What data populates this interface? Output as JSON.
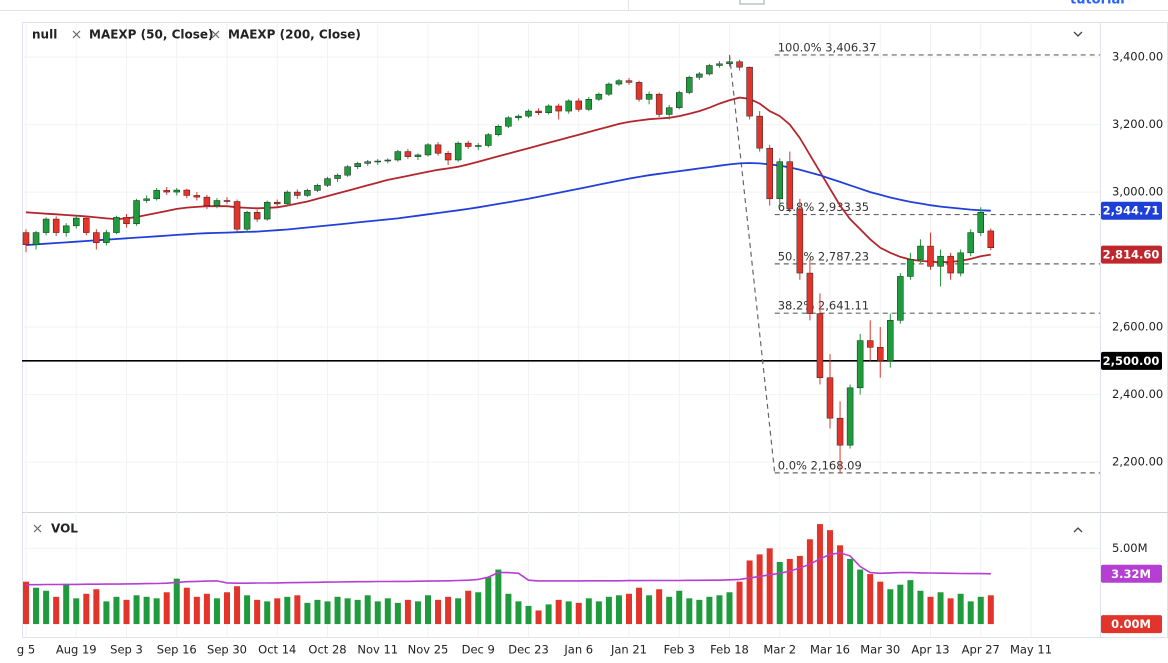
{
  "toolbar_text": "tutorial",
  "chart_data": {
    "type": "candlestick",
    "title": "null",
    "categories": [
      "g 5",
      null,
      null,
      null,
      null,
      "Aug 19",
      null,
      null,
      null,
      null,
      "Sep 3",
      null,
      null,
      null,
      null,
      "Sep 16",
      null,
      null,
      null,
      null,
      "Sep 30",
      null,
      null,
      null,
      null,
      "Oct 14",
      null,
      null,
      null,
      null,
      "Oct 28",
      null,
      null,
      null,
      null,
      "Nov 11",
      null,
      null,
      null,
      null,
      "Nov 25",
      null,
      null,
      null,
      null,
      "Dec 9",
      null,
      null,
      null,
      null,
      "Dec 23",
      null,
      null,
      null,
      null,
      "Jan 6",
      null,
      null,
      null,
      null,
      "Jan 21",
      null,
      null,
      null,
      null,
      "Feb 3",
      null,
      null,
      null,
      null,
      "Feb 18",
      null,
      null,
      null,
      null,
      "Mar 2",
      null,
      null,
      null,
      null,
      "Mar 16",
      null,
      null,
      null,
      null,
      "Mar 30",
      null,
      null,
      null,
      null,
      "Apr 13",
      null,
      null,
      null,
      null,
      "Apr 27",
      null,
      null,
      null,
      null,
      "May 11",
      null,
      null
    ],
    "ohlc": [
      [
        2880,
        2890,
        2822,
        2844
      ],
      [
        2844,
        2885,
        2830,
        2880
      ],
      [
        2880,
        2925,
        2872,
        2920
      ],
      [
        2920,
        2928,
        2870,
        2880
      ],
      [
        2880,
        2908,
        2868,
        2900
      ],
      [
        2900,
        2930,
        2892,
        2923
      ],
      [
        2923,
        2930,
        2872,
        2880
      ],
      [
        2880,
        2890,
        2830,
        2850
      ],
      [
        2850,
        2888,
        2842,
        2880
      ],
      [
        2880,
        2930,
        2875,
        2925
      ],
      [
        2925,
        2935,
        2895,
        2906
      ],
      [
        2906,
        2980,
        2900,
        2975
      ],
      [
        2975,
        2990,
        2968,
        2980
      ],
      [
        2980,
        3012,
        2975,
        3005
      ],
      [
        3005,
        3015,
        2992,
        3000
      ],
      [
        3000,
        3012,
        2990,
        3006
      ],
      [
        3006,
        3010,
        2982,
        2990
      ],
      [
        2990,
        3000,
        2975,
        2985
      ],
      [
        2985,
        2992,
        2950,
        2960
      ],
      [
        2960,
        2982,
        2952,
        2975
      ],
      [
        2975,
        2985,
        2965,
        2972
      ],
      [
        2972,
        2978,
        2882,
        2890
      ],
      [
        2890,
        2945,
        2880,
        2940
      ],
      [
        2940,
        2948,
        2912,
        2920
      ],
      [
        2920,
        2975,
        2915,
        2970
      ],
      [
        2970,
        2978,
        2955,
        2965
      ],
      [
        2965,
        3005,
        2960,
        3000
      ],
      [
        3000,
        3008,
        2980,
        2990
      ],
      [
        2990,
        3010,
        2985,
        3005
      ],
      [
        3005,
        3025,
        3000,
        3020
      ],
      [
        3020,
        3045,
        3015,
        3040
      ],
      [
        3040,
        3055,
        3030,
        3050
      ],
      [
        3050,
        3080,
        3045,
        3075
      ],
      [
        3075,
        3090,
        3068,
        3085
      ],
      [
        3085,
        3095,
        3078,
        3090
      ],
      [
        3090,
        3098,
        3080,
        3092
      ],
      [
        3092,
        3100,
        3085,
        3095
      ],
      [
        3095,
        3125,
        3090,
        3120
      ],
      [
        3120,
        3128,
        3098,
        3105
      ],
      [
        3105,
        3115,
        3095,
        3110
      ],
      [
        3110,
        3145,
        3105,
        3140
      ],
      [
        3140,
        3148,
        3108,
        3115
      ],
      [
        3115,
        3122,
        3080,
        3095
      ],
      [
        3095,
        3150,
        3090,
        3145
      ],
      [
        3145,
        3152,
        3128,
        3135
      ],
      [
        3135,
        3145,
        3125,
        3138
      ],
      [
        3138,
        3175,
        3132,
        3170
      ],
      [
        3170,
        3200,
        3165,
        3195
      ],
      [
        3195,
        3225,
        3190,
        3220
      ],
      [
        3220,
        3230,
        3212,
        3225
      ],
      [
        3225,
        3245,
        3220,
        3240
      ],
      [
        3240,
        3248,
        3228,
        3235
      ],
      [
        3235,
        3260,
        3230,
        3255
      ],
      [
        3255,
        3262,
        3215,
        3240
      ],
      [
        3240,
        3275,
        3232,
        3270
      ],
      [
        3270,
        3278,
        3238,
        3245
      ],
      [
        3245,
        3282,
        3240,
        3275
      ],
      [
        3275,
        3295,
        3270,
        3290
      ],
      [
        3290,
        3325,
        3285,
        3320
      ],
      [
        3320,
        3335,
        3315,
        3330
      ],
      [
        3330,
        3338,
        3318,
        3325
      ],
      [
        3325,
        3330,
        3268,
        3275
      ],
      [
        3275,
        3298,
        3260,
        3290
      ],
      [
        3290,
        3295,
        3222,
        3230
      ],
      [
        3230,
        3258,
        3215,
        3250
      ],
      [
        3250,
        3300,
        3245,
        3295
      ],
      [
        3295,
        3345,
        3290,
        3340
      ],
      [
        3340,
        3356,
        3332,
        3350
      ],
      [
        3350,
        3380,
        3345,
        3375
      ],
      [
        3375,
        3388,
        3368,
        3380
      ],
      [
        3380,
        3406,
        3372,
        3386
      ],
      [
        3386,
        3392,
        3360,
        3370
      ],
      [
        3370,
        3372,
        3215,
        3225
      ],
      [
        3225,
        3240,
        3120,
        3130
      ],
      [
        3130,
        3140,
        2960,
        2980
      ],
      [
        2980,
        3100,
        2955,
        3090
      ],
      [
        3090,
        3120,
        2940,
        2950
      ],
      [
        2950,
        2980,
        2740,
        2760
      ],
      [
        2760,
        2800,
        2620,
        2640
      ],
      [
        2640,
        2700,
        2430,
        2450
      ],
      [
        2450,
        2520,
        2300,
        2330
      ],
      [
        2330,
        2380,
        2168,
        2250
      ],
      [
        2250,
        2430,
        2240,
        2420
      ],
      [
        2420,
        2580,
        2400,
        2560
      ],
      [
        2560,
        2620,
        2500,
        2540
      ],
      [
        2540,
        2600,
        2450,
        2500
      ],
      [
        2500,
        2640,
        2480,
        2620
      ],
      [
        2620,
        2760,
        2610,
        2750
      ],
      [
        2750,
        2820,
        2740,
        2800
      ],
      [
        2800,
        2860,
        2790,
        2840
      ],
      [
        2840,
        2880,
        2770,
        2780
      ],
      [
        2780,
        2830,
        2720,
        2810
      ],
      [
        2810,
        2820,
        2740,
        2760
      ],
      [
        2760,
        2830,
        2750,
        2820
      ],
      [
        2820,
        2890,
        2810,
        2880
      ],
      [
        2880,
        2955,
        2870,
        2940
      ],
      [
        2885,
        2892,
        2828,
        2835
      ],
      null,
      null,
      null,
      null,
      null,
      null
    ],
    "up_color": "#1f9a3c",
    "down_color": "#e2342b",
    "series": [
      {
        "name": "MAEXP (50, Close)",
        "color": "#b3262c",
        "values": [
          2940,
          2938,
          2936,
          2934,
          2932,
          2930,
          2928,
          2925,
          2922,
          2920,
          2922,
          2926,
          2932,
          2938,
          2944,
          2950,
          2954,
          2956,
          2958,
          2958,
          2958,
          2955,
          2953,
          2952,
          2953,
          2955,
          2960,
          2966,
          2972,
          2980,
          2988,
          2996,
          3004,
          3012,
          3020,
          3028,
          3036,
          3042,
          3048,
          3054,
          3060,
          3066,
          3070,
          3075,
          3082,
          3090,
          3098,
          3106,
          3114,
          3122,
          3130,
          3138,
          3146,
          3154,
          3162,
          3170,
          3178,
          3186,
          3194,
          3202,
          3208,
          3212,
          3216,
          3218,
          3220,
          3225,
          3232,
          3240,
          3250,
          3262,
          3272,
          3280,
          3276,
          3262,
          3240,
          3225,
          3200,
          3160,
          3110,
          3060,
          3010,
          2960,
          2920,
          2890,
          2860,
          2835,
          2820,
          2808,
          2800,
          2796,
          2794,
          2792,
          2793,
          2796,
          2802,
          2810,
          2814.6,
          null,
          null,
          null,
          null,
          null,
          null
        ]
      },
      {
        "name": "MAEXP (200, Close)",
        "color": "#2140d8",
        "values": [
          2843,
          2845,
          2847,
          2849,
          2851,
          2853,
          2855,
          2857,
          2859,
          2861,
          2863,
          2865,
          2867,
          2869,
          2871,
          2873,
          2875,
          2877,
          2878,
          2879,
          2880,
          2881,
          2882,
          2883,
          2885,
          2887,
          2889,
          2892,
          2895,
          2898,
          2901,
          2904,
          2907,
          2910,
          2913,
          2916,
          2919,
          2922,
          2926,
          2930,
          2934,
          2938,
          2942,
          2946,
          2950,
          2955,
          2960,
          2965,
          2970,
          2975,
          2980,
          2986,
          2992,
          2998,
          3004,
          3010,
          3016,
          3022,
          3028,
          3034,
          3040,
          3045,
          3050,
          3054,
          3058,
          3062,
          3066,
          3070,
          3074,
          3078,
          3082,
          3085,
          3086,
          3085,
          3082,
          3078,
          3073,
          3066,
          3058,
          3050,
          3040,
          3030,
          3020,
          3010,
          3000,
          2992,
          2984,
          2977,
          2971,
          2966,
          2961,
          2957,
          2954,
          2951,
          2948,
          2946,
          2944.71,
          null,
          null,
          null,
          null,
          null,
          null
        ]
      }
    ],
    "last_labels": [
      {
        "value": 2944.71,
        "label": "2,944.71",
        "color": "#1e40d6"
      },
      {
        "value": 2814.6,
        "label": "2,814.60",
        "color": "#c0272d"
      }
    ],
    "hline": {
      "value": 2500,
      "label": "2,500.00",
      "color": "#000000"
    },
    "fib": [
      {
        "value": 3406.37,
        "label": "100.0% 3,406.37"
      },
      {
        "value": 2933.35,
        "label": "61.8% 2,933.35"
      },
      {
        "value": 2787.23,
        "label": "50.0% 2,787.23"
      },
      {
        "value": 2641.11,
        "label": "38.2% 2,641.11"
      },
      {
        "value": 2168.09,
        "label": "0.0% 2,168.09"
      }
    ],
    "ylim": [
      2058,
      3495
    ],
    "yticks": [
      {
        "value": 2200,
        "label": "2,200.00"
      },
      {
        "value": 2400,
        "label": "2,400.00"
      },
      {
        "value": 2600,
        "label": "2,600.00"
      },
      {
        "value": 3000,
        "label": "3,000.00"
      },
      {
        "value": 3200,
        "label": "3,200.00"
      },
      {
        "value": 3400,
        "label": "3,400.00"
      }
    ],
    "grid": true,
    "volume": {
      "name": "VOL",
      "values": [
        2.8,
        2.4,
        2.2,
        1.8,
        2.6,
        1.7,
        2.0,
        2.3,
        1.5,
        1.8,
        1.6,
        1.9,
        1.8,
        1.7,
        2.1,
        3.0,
        2.4,
        1.8,
        2.0,
        1.7,
        2.1,
        2.5,
        1.9,
        1.6,
        1.5,
        1.7,
        1.8,
        1.9,
        1.4,
        1.6,
        1.5,
        1.8,
        1.7,
        1.6,
        1.9,
        1.5,
        1.7,
        1.4,
        1.6,
        1.5,
        1.9,
        1.6,
        1.8,
        1.7,
        2.2,
        2.1,
        3.1,
        3.6,
        2.0,
        1.5,
        1.2,
        0.9,
        1.3,
        1.6,
        1.5,
        1.4,
        1.7,
        1.5,
        1.8,
        1.9,
        2.0,
        2.4,
        1.9,
        2.3,
        1.8,
        2.2,
        1.7,
        1.6,
        1.8,
        1.9,
        2.1,
        2.8,
        4.2,
        4.6,
        5.0,
        4.1,
        4.3,
        4.5,
        5.6,
        6.6,
        6.2,
        5.2,
        4.3,
        3.6,
        3.3,
        2.8,
        2.3,
        2.6,
        2.9,
        2.2,
        1.8,
        2.1,
        1.7,
        2.0,
        1.5,
        1.8,
        1.9,
        null,
        null,
        null,
        null,
        null,
        null
      ],
      "ma": [
        2.6,
        2.6,
        2.61,
        2.61,
        2.62,
        2.62,
        2.63,
        2.63,
        2.64,
        2.64,
        2.65,
        2.66,
        2.67,
        2.68,
        2.7,
        2.75,
        2.8,
        2.82,
        2.84,
        2.85,
        2.72,
        2.7,
        2.7,
        2.71,
        2.71,
        2.72,
        2.73,
        2.74,
        2.75,
        2.76,
        2.77,
        2.78,
        2.79,
        2.8,
        2.8,
        2.81,
        2.81,
        2.82,
        2.82,
        2.83,
        2.84,
        2.85,
        2.86,
        2.88,
        2.9,
        2.95,
        3.1,
        3.4,
        3.4,
        3.35,
        2.9,
        2.85,
        2.85,
        2.85,
        2.85,
        2.85,
        2.86,
        2.86,
        2.86,
        2.86,
        2.87,
        2.87,
        2.88,
        2.88,
        2.88,
        2.88,
        2.89,
        2.89,
        2.9,
        2.9,
        2.92,
        2.95,
        3.05,
        3.15,
        3.25,
        3.35,
        3.5,
        3.7,
        3.95,
        4.3,
        4.6,
        4.7,
        4.5,
        3.8,
        3.4,
        3.35,
        3.38,
        3.4,
        3.4,
        3.38,
        3.37,
        3.36,
        3.35,
        3.34,
        3.33,
        3.33,
        3.32,
        null,
        null,
        null,
        null,
        null,
        null
      ],
      "ma_color": "#b53fd2",
      "ylim": [
        -0.72,
        7.2
      ],
      "yticks": [
        {
          "value": 5,
          "label": "5.00M"
        }
      ],
      "badges": [
        {
          "value": 3.32,
          "label": "3.32M",
          "color": "#b53fd2"
        },
        {
          "value": 0,
          "label": "0.00M",
          "color": "#e2342b"
        }
      ]
    }
  }
}
